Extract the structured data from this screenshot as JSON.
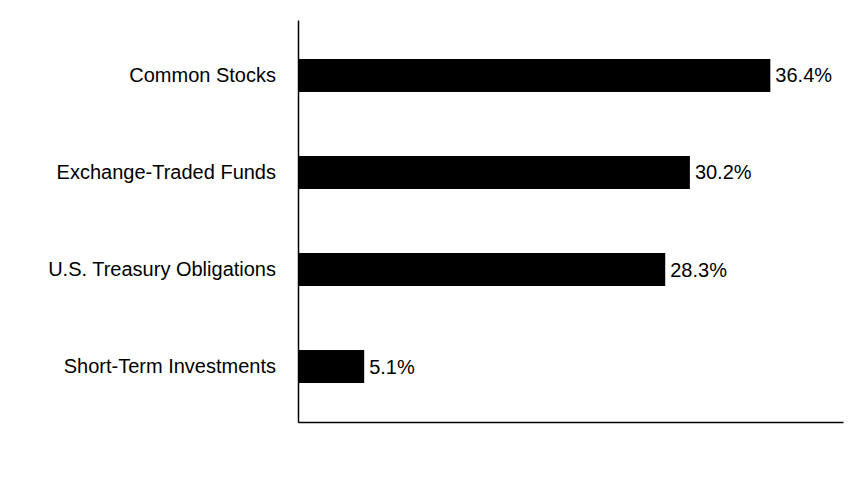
{
  "chart_data": {
    "type": "bar",
    "orientation": "horizontal",
    "categories": [
      "Common Stocks",
      "Exchange-Traded Funds",
      "U.S. Treasury Obligations",
      "Short-Term Investments"
    ],
    "values": [
      36.4,
      30.2,
      28.3,
      5.1
    ],
    "value_labels": [
      "36.4%",
      "30.2%",
      "28.3%",
      "5.1%"
    ],
    "color": "#000000",
    "xlim": [
      0,
      42
    ],
    "xticks": [],
    "data_labels": true,
    "tick_labels": "y",
    "grid": false
  }
}
